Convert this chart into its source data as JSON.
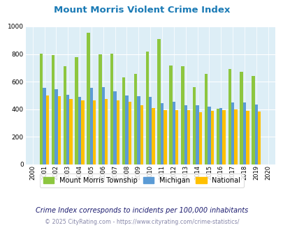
{
  "title": "Mount Morris Violent Crime Index",
  "title_color": "#1a7ab5",
  "years": [
    "2000",
    "2001",
    "2002",
    "2003",
    "2004",
    "2005",
    "2006",
    "2007",
    "2008",
    "2009",
    "2010",
    "2011",
    "2012",
    "2013",
    "2014",
    "2015",
    "2016",
    "2017",
    "2018",
    "2019",
    "2020"
  ],
  "mount_morris": [
    null,
    805,
    795,
    710,
    775,
    955,
    800,
    805,
    630,
    655,
    820,
    910,
    715,
    710,
    560,
    655,
    405,
    690,
    670,
    640,
    null
  ],
  "michigan": [
    null,
    555,
    545,
    505,
    490,
    555,
    560,
    530,
    500,
    495,
    490,
    445,
    455,
    430,
    430,
    420,
    410,
    450,
    450,
    435,
    null
  ],
  "national": [
    null,
    500,
    495,
    475,
    465,
    465,
    475,
    465,
    455,
    430,
    410,
    395,
    395,
    395,
    380,
    390,
    395,
    400,
    390,
    385,
    null
  ],
  "mount_morris_color": "#8dc63f",
  "michigan_color": "#5b9bd5",
  "national_color": "#ffc000",
  "bg_color": "#ddeef6",
  "ylim": [
    0,
    1000
  ],
  "yticks": [
    0,
    200,
    400,
    600,
    800,
    1000
  ],
  "legend_labels": [
    "Mount Morris Township",
    "Michigan",
    "National"
  ],
  "footnote": "Crime Index corresponds to incidents per 100,000 inhabitants",
  "footnote_color": "#1a1a6e",
  "copyright": "© 2025 CityRating.com - https://www.cityrating.com/crime-statistics/",
  "copyright_color": "#8888aa"
}
